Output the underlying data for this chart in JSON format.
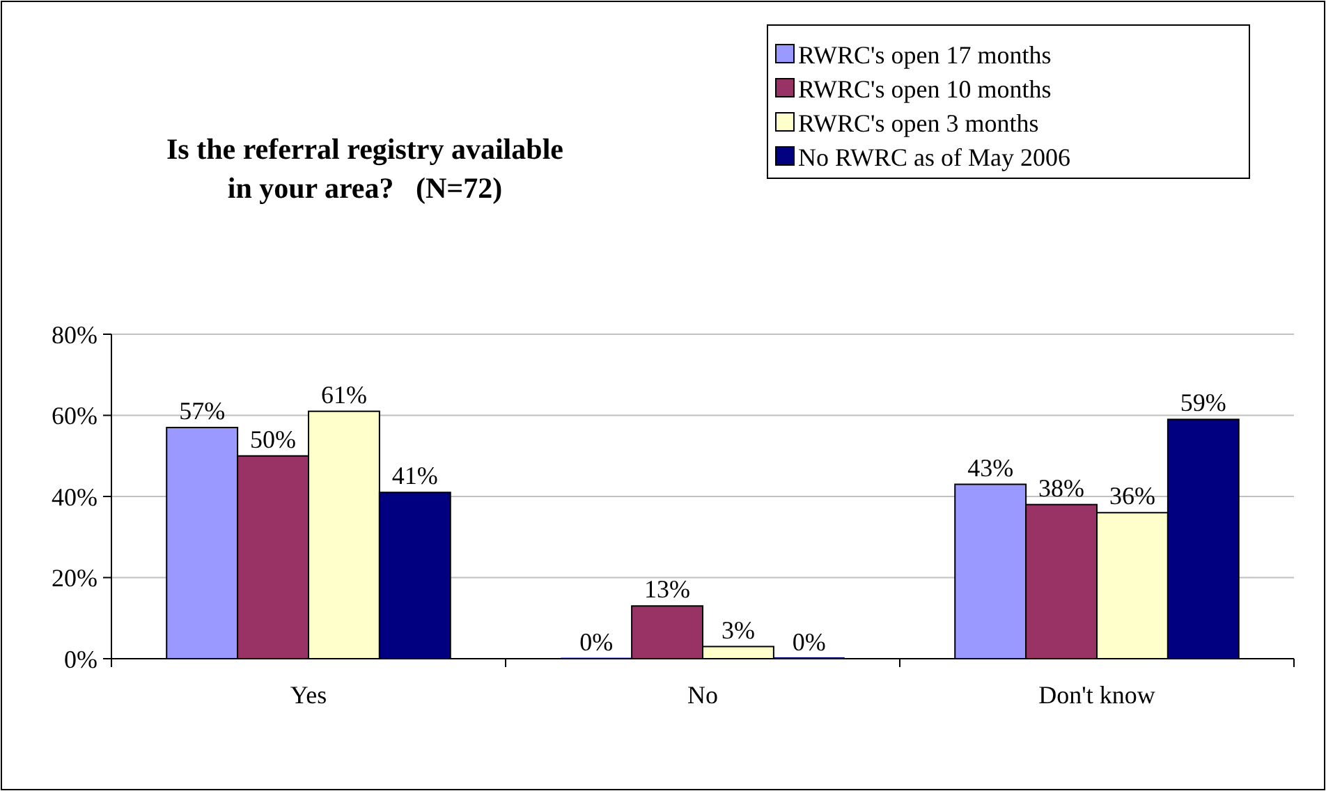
{
  "chart_data": {
    "type": "bar",
    "title": "Is the referral registry available in your area?   (N=72)",
    "categories": [
      "Yes",
      "No",
      "Don't know"
    ],
    "series": [
      {
        "name": "RWRC's open 17 months",
        "color": "#9999ff",
        "values": [
          57,
          0,
          43
        ],
        "value_labels": [
          "57%",
          "0%",
          "43%"
        ]
      },
      {
        "name": "RWRC's open 10 months",
        "color": "#993366",
        "values": [
          50,
          13,
          38
        ],
        "value_labels": [
          "50%",
          "13%",
          "38%"
        ]
      },
      {
        "name": "RWRC's open 3 months",
        "color": "#ffffcc",
        "values": [
          61,
          3,
          36
        ],
        "value_labels": [
          "61%",
          "3%",
          "36%"
        ]
      },
      {
        "name": "No RWRC as of May 2006",
        "color": "#000080",
        "values": [
          41,
          0,
          59
        ],
        "value_labels": [
          "41%",
          "0%",
          "59%"
        ]
      }
    ],
    "ylim": [
      0,
      80
    ],
    "yticks": [
      {
        "value": 0,
        "label": "0%"
      },
      {
        "value": 20,
        "label": "20%"
      },
      {
        "value": 40,
        "label": "40%"
      },
      {
        "value": 60,
        "label": "60%"
      },
      {
        "value": 80,
        "label": "80%"
      }
    ],
    "grid": "y",
    "legend": "top right"
  }
}
